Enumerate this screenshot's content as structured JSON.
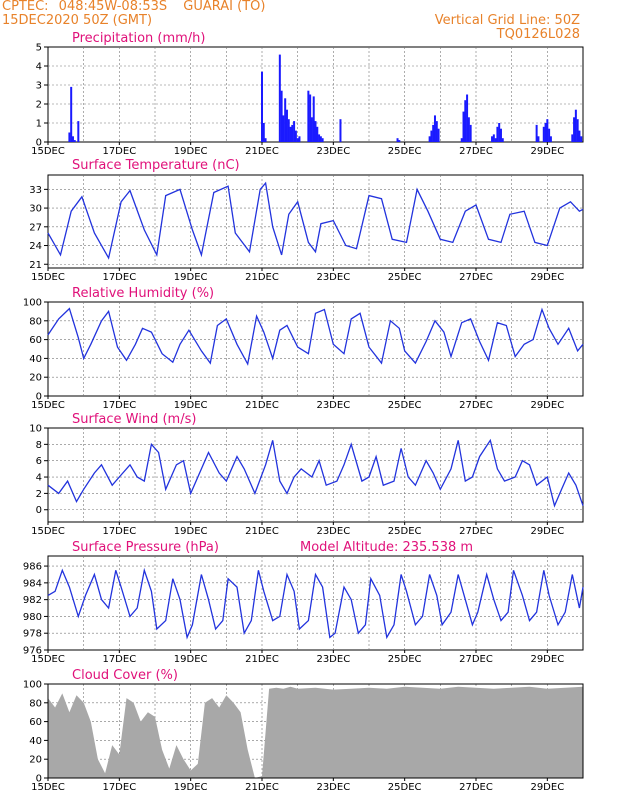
{
  "header": {
    "source": "CPTEC:",
    "coords": "048:45W-08:53S",
    "location": "GUARAI (TO)",
    "run": "15DEC2020 50Z (GMT)",
    "grid_note": "Vertical Grid Line: 50Z",
    "model": "TQ0126L028"
  },
  "colors": {
    "header": "#e8822a",
    "title": "#e0117a",
    "line": "#2233dd",
    "bar": "#1a1aff",
    "cloud": "#a8a8a8"
  },
  "x_tick_labels": [
    "15DEC",
    "17DEC",
    "19DEC",
    "21DEC",
    "23DEC",
    "25DEC",
    "27DEC",
    "29DEC"
  ],
  "chart_data": [
    {
      "type": "bar",
      "title": "Precipitation (mm/h)",
      "x_unit": "days since 15DEC 00Z",
      "ylim": [
        0,
        5
      ],
      "yticks": [
        "0",
        "1",
        "2",
        "3",
        "4",
        "5"
      ],
      "grid": true,
      "x": [
        0.6,
        0.65,
        0.7,
        0.75,
        0.85,
        6.0,
        6.05,
        6.1,
        6.5,
        6.55,
        6.6,
        6.65,
        6.7,
        6.75,
        6.8,
        6.85,
        6.9,
        6.95,
        7.0,
        7.05,
        7.3,
        7.35,
        7.4,
        7.45,
        7.5,
        7.55,
        7.6,
        7.65,
        7.7,
        8.2,
        9.8,
        9.85,
        10.7,
        10.75,
        10.8,
        10.85,
        10.9,
        10.95,
        11.6,
        11.65,
        11.7,
        11.75,
        11.8,
        11.85,
        12.45,
        12.5,
        12.55,
        12.6,
        12.65,
        12.7,
        12.75,
        13.7,
        13.75,
        13.9,
        13.95,
        14.0,
        14.05,
        14.1,
        14.7,
        14.75,
        14.8,
        14.85,
        14.9,
        14.95
      ],
      "values": [
        0.5,
        2.9,
        0.3,
        0.1,
        1.1,
        3.7,
        1.0,
        0.2,
        4.6,
        2.7,
        1.4,
        2.3,
        1.7,
        1.2,
        0.8,
        0.9,
        1.1,
        0.6,
        0.2,
        0.3,
        2.7,
        2.5,
        1.3,
        2.4,
        1.1,
        0.8,
        0.4,
        0.3,
        0.2,
        1.2,
        0.2,
        0.1,
        0.3,
        0.6,
        0.9,
        1.4,
        1.1,
        0.7,
        0.2,
        1.6,
        2.2,
        2.5,
        1.3,
        0.9,
        0.3,
        0.4,
        0.2,
        0.8,
        1.0,
        0.7,
        0.2,
        0.9,
        0.3,
        0.8,
        1.0,
        1.2,
        0.7,
        0.3,
        0.4,
        1.3,
        1.7,
        1.2,
        0.6,
        0.3
      ]
    },
    {
      "type": "line",
      "title": "Surface Temperature (nC)",
      "x_unit": "days since 15DEC 00Z",
      "ylim": [
        20.4,
        35.3
      ],
      "yticks": [
        "21",
        "24",
        "27",
        "30",
        "33"
      ],
      "ytick_values": [
        21,
        24,
        27,
        30,
        33
      ],
      "grid": true,
      "x": [
        0,
        0.15,
        0.35,
        0.65,
        0.95,
        1.3,
        1.7,
        2.05,
        2.3,
        2.7,
        3.05,
        3.3,
        3.7,
        4.05,
        4.3,
        4.65,
        5.05,
        5.25,
        5.65,
        5.95,
        6.1,
        6.3,
        6.55,
        6.75,
        7.0,
        7.3,
        7.5,
        7.65,
        8.0,
        8.35,
        8.65,
        9.0,
        9.35,
        9.65,
        10.05,
        10.35,
        10.65,
        11.0,
        11.35,
        11.7,
        12.0,
        12.35,
        12.7,
        12.95,
        13.35,
        13.65,
        14.0,
        14.35,
        14.65,
        14.9,
        15.0
      ],
      "values": [
        26.0,
        24.5,
        22.5,
        29.5,
        31.8,
        26.0,
        22.0,
        31.0,
        32.8,
        26.5,
        22.5,
        32.0,
        33.0,
        26.5,
        22.5,
        32.5,
        33.5,
        26.0,
        23.0,
        33.0,
        34.0,
        27.0,
        22.5,
        29.0,
        31.0,
        24.5,
        23.0,
        27.5,
        28.0,
        24.0,
        23.5,
        32.0,
        31.5,
        25.0,
        24.5,
        33.0,
        29.5,
        25.0,
        24.5,
        29.5,
        30.5,
        25.0,
        24.5,
        29.0,
        29.5,
        24.5,
        24.0,
        30.0,
        31.0,
        29.5,
        29.8
      ]
    },
    {
      "type": "line",
      "title": "Relative Humidity (%)",
      "x_unit": "days since 15DEC 00Z",
      "ylim": [
        0,
        100
      ],
      "yticks": [
        "0",
        "20",
        "40",
        "60",
        "80",
        "100"
      ],
      "ytick_values": [
        0,
        20,
        40,
        60,
        80,
        100
      ],
      "grid": true,
      "x": [
        0,
        0.3,
        0.6,
        0.85,
        1.0,
        1.2,
        1.5,
        1.7,
        1.95,
        2.2,
        2.45,
        2.65,
        2.9,
        3.2,
        3.5,
        3.7,
        3.95,
        4.3,
        4.55,
        4.75,
        5.0,
        5.3,
        5.6,
        5.85,
        6.05,
        6.3,
        6.5,
        6.7,
        7.0,
        7.3,
        7.5,
        7.75,
        8.0,
        8.3,
        8.5,
        8.75,
        9.0,
        9.35,
        9.6,
        9.85,
        10.0,
        10.3,
        10.6,
        10.85,
        11.1,
        11.3,
        11.6,
        11.85,
        12.1,
        12.35,
        12.6,
        12.85,
        13.1,
        13.35,
        13.6,
        13.85,
        14.05,
        14.3,
        14.6,
        14.85,
        15.0
      ],
      "values": [
        65,
        82,
        93,
        62,
        40,
        55,
        80,
        90,
        52,
        38,
        55,
        72,
        68,
        45,
        36,
        55,
        70,
        48,
        35,
        75,
        82,
        55,
        34,
        85,
        68,
        40,
        70,
        75,
        52,
        45,
        88,
        92,
        55,
        45,
        82,
        88,
        52,
        35,
        80,
        72,
        48,
        35,
        58,
        80,
        68,
        42,
        78,
        82,
        58,
        38,
        78,
        75,
        42,
        55,
        60,
        92,
        72,
        55,
        72,
        48,
        55
      ]
    },
    {
      "type": "line",
      "title": "Surface Wind (m/s)",
      "x_unit": "days since 15DEC 00Z",
      "ylim": [
        -1.5,
        10
      ],
      "yticks": [
        "0",
        "2",
        "4",
        "6",
        "8",
        "10"
      ],
      "ytick_values": [
        0,
        2,
        4,
        6,
        8,
        10
      ],
      "grid": true,
      "x": [
        0,
        0.3,
        0.55,
        0.8,
        1.0,
        1.3,
        1.5,
        1.8,
        2.0,
        2.3,
        2.5,
        2.7,
        2.9,
        3.1,
        3.3,
        3.6,
        3.8,
        4.0,
        4.3,
        4.5,
        4.8,
        5.0,
        5.3,
        5.5,
        5.8,
        6.1,
        6.3,
        6.5,
        6.7,
        6.9,
        7.1,
        7.4,
        7.6,
        7.8,
        8.1,
        8.3,
        8.5,
        8.8,
        9.0,
        9.2,
        9.4,
        9.7,
        9.9,
        10.1,
        10.3,
        10.6,
        10.8,
        11.0,
        11.3,
        11.5,
        11.7,
        11.9,
        12.1,
        12.4,
        12.6,
        12.8,
        13.1,
        13.3,
        13.5,
        13.7,
        14.0,
        14.2,
        14.4,
        14.6,
        14.8,
        15.0
      ],
      "values": [
        3.0,
        2.0,
        3.5,
        1.0,
        2.5,
        4.5,
        5.5,
        3.0,
        4.0,
        5.5,
        4.0,
        3.5,
        8.0,
        7.0,
        2.5,
        5.5,
        6.0,
        2.0,
        5.0,
        7.0,
        4.5,
        3.5,
        6.5,
        5.0,
        2.0,
        5.5,
        8.5,
        3.5,
        2.0,
        4.0,
        5.0,
        4.0,
        6.0,
        3.0,
        3.5,
        5.5,
        8.0,
        3.5,
        4.0,
        6.5,
        3.0,
        3.5,
        7.5,
        4.0,
        3.0,
        6.0,
        4.5,
        2.5,
        5.0,
        8.5,
        3.5,
        4.0,
        6.5,
        8.5,
        5.0,
        3.5,
        4.0,
        6.0,
        5.5,
        3.0,
        4.0,
        0.5,
        2.5,
        4.5,
        3.0,
        0.5
      ]
    },
    {
      "type": "line",
      "title": "Surface Pressure (hPa)",
      "annotation": "Model Altitude: 235.538  m",
      "x_unit": "days since 15DEC 00Z",
      "ylim": [
        976,
        987.2
      ],
      "yticks": [
        "976",
        "978",
        "980",
        "982",
        "984",
        "986"
      ],
      "ytick_values": [
        976,
        978,
        980,
        982,
        984,
        986
      ],
      "grid": true,
      "x": [
        0,
        0.2,
        0.4,
        0.6,
        0.85,
        1.05,
        1.3,
        1.5,
        1.7,
        1.9,
        2.05,
        2.3,
        2.5,
        2.7,
        2.9,
        3.05,
        3.3,
        3.5,
        3.7,
        3.9,
        4.05,
        4.3,
        4.5,
        4.7,
        4.9,
        5.05,
        5.3,
        5.5,
        5.7,
        5.9,
        6.05,
        6.3,
        6.5,
        6.7,
        6.9,
        7.05,
        7.3,
        7.5,
        7.7,
        7.9,
        8.05,
        8.3,
        8.5,
        8.7,
        8.9,
        9.05,
        9.3,
        9.5,
        9.7,
        9.9,
        10.05,
        10.3,
        10.5,
        10.7,
        10.9,
        11.05,
        11.3,
        11.5,
        11.7,
        11.9,
        12.05,
        12.3,
        12.5,
        12.7,
        12.9,
        13.05,
        13.3,
        13.5,
        13.7,
        13.9,
        14.05,
        14.3,
        14.5,
        14.7,
        14.9,
        15.0
      ],
      "values": [
        982.5,
        983.0,
        985.5,
        983.5,
        980.0,
        982.5,
        985.0,
        982.0,
        981.0,
        985.5,
        983.5,
        980.0,
        981.0,
        985.5,
        983.0,
        978.5,
        979.5,
        984.5,
        982.0,
        977.5,
        979.0,
        985.0,
        982.0,
        978.5,
        979.5,
        984.5,
        983.5,
        978.0,
        979.5,
        985.5,
        983.0,
        979.5,
        980.0,
        985.0,
        983.0,
        978.5,
        979.5,
        985.0,
        983.5,
        977.5,
        978.0,
        983.5,
        982.0,
        978.0,
        979.0,
        984.5,
        982.5,
        977.5,
        979.0,
        985.0,
        983.0,
        979.0,
        980.0,
        985.0,
        982.5,
        979.0,
        980.5,
        985.0,
        982.0,
        979.0,
        980.5,
        985.0,
        982.0,
        979.5,
        980.5,
        985.5,
        982.5,
        979.5,
        980.5,
        985.5,
        982.5,
        979.0,
        980.5,
        985.0,
        981.0,
        983.5
      ]
    },
    {
      "type": "area",
      "title": "Cloud Cover (%)",
      "x_unit": "days since 15DEC 00Z",
      "ylim": [
        0,
        100
      ],
      "yticks": [
        "0",
        "20",
        "40",
        "60",
        "80",
        "100"
      ],
      "ytick_values": [
        0,
        20,
        40,
        60,
        80,
        100
      ],
      "grid": true,
      "x": [
        0,
        0.2,
        0.4,
        0.6,
        0.8,
        1.0,
        1.2,
        1.4,
        1.6,
        1.8,
        2.0,
        2.2,
        2.4,
        2.6,
        2.8,
        3.0,
        3.2,
        3.4,
        3.6,
        3.8,
        4.0,
        4.2,
        4.4,
        4.6,
        4.8,
        5.0,
        5.2,
        5.4,
        5.6,
        5.8,
        6.0,
        6.2,
        6.4,
        6.6,
        6.8,
        7.0,
        7.5,
        8.0,
        8.5,
        9.0,
        9.5,
        10.0,
        10.5,
        11.0,
        11.5,
        12.0,
        12.5,
        13.0,
        13.5,
        14.0,
        14.5,
        15.0
      ],
      "values": [
        85,
        75,
        90,
        70,
        88,
        80,
        60,
        20,
        5,
        35,
        25,
        85,
        80,
        60,
        70,
        65,
        30,
        10,
        35,
        20,
        8,
        15,
        80,
        85,
        75,
        88,
        80,
        70,
        30,
        0,
        2,
        95,
        96,
        95,
        97,
        95,
        96,
        94,
        95,
        96,
        95,
        97,
        96,
        95,
        97,
        96,
        95,
        96,
        97,
        95,
        96,
        97
      ]
    }
  ]
}
